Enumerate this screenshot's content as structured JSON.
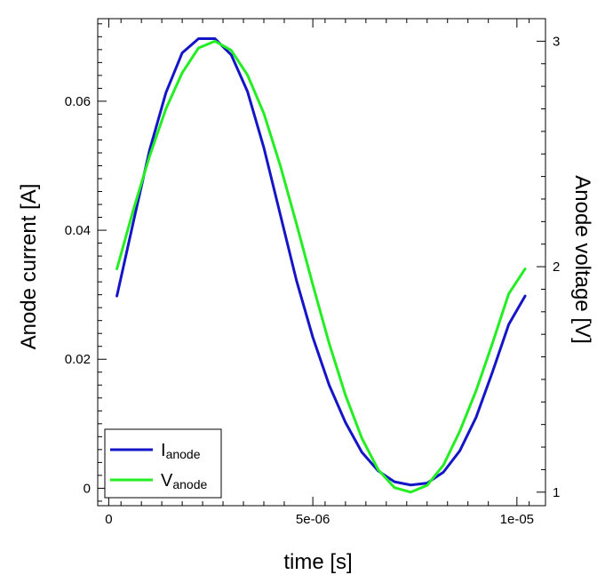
{
  "chart_data": {
    "type": "line",
    "xlabel": "time [s]",
    "ylabel_left": "Anode current [A]",
    "ylabel_right": "Anode voltage [V]",
    "xlim": [
      -2.7e-07,
      1.07e-05
    ],
    "ylim_left": [
      -0.0027,
      0.0728
    ],
    "ylim_right": [
      0.94,
      3.1
    ],
    "x_ticks": [
      {
        "value": 0,
        "label": "0"
      },
      {
        "value": 5e-06,
        "label": "5e-06"
      },
      {
        "value": 1e-05,
        "label": "1e-05"
      }
    ],
    "y_ticks_left": [
      {
        "value": 0,
        "label": "0"
      },
      {
        "value": 0.02,
        "label": "0.02"
      },
      {
        "value": 0.04,
        "label": "0.04"
      },
      {
        "value": 0.06,
        "label": "0.06"
      }
    ],
    "y_ticks_right": [
      {
        "value": 1,
        "label": "1"
      },
      {
        "value": 2,
        "label": "2"
      },
      {
        "value": 3,
        "label": "3"
      }
    ],
    "grid": false,
    "legend_position": "bottom-left",
    "series": [
      {
        "name": "I",
        "subscript": "anode",
        "axis": "left",
        "color": "#1515c8",
        "x": [
          2e-07,
          6e-07,
          1e-06,
          1.4e-06,
          1.8e-06,
          2.2e-06,
          2.6e-06,
          3e-06,
          3.4e-06,
          3.8e-06,
          4.2e-06,
          4.6e-06,
          5e-06,
          5.4e-06,
          5.8e-06,
          6.2e-06,
          6.6e-06,
          7e-06,
          7.4e-06,
          7.8e-06,
          8.2e-06,
          8.6e-06,
          9e-06,
          9.4e-06,
          9.8e-06,
          1.02e-05
        ],
        "y": [
          0.0298,
          0.0412,
          0.0524,
          0.0613,
          0.0675,
          0.0697,
          0.0697,
          0.0672,
          0.0615,
          0.0528,
          0.0425,
          0.0322,
          0.0234,
          0.016,
          0.0102,
          0.0056,
          0.0027,
          0.001,
          0.0005,
          0.0008,
          0.0025,
          0.0058,
          0.011,
          0.018,
          0.0254,
          0.0298
        ]
      },
      {
        "name": "V",
        "subscript": "anode",
        "axis": "right",
        "color": "#22ee22",
        "x": [
          2e-07,
          6e-07,
          1e-06,
          1.4e-06,
          1.8e-06,
          2.2e-06,
          2.6e-06,
          3e-06,
          3.4e-06,
          3.8e-06,
          4.2e-06,
          4.6e-06,
          5e-06,
          5.4e-06,
          5.8e-06,
          6.2e-06,
          6.6e-06,
          7e-06,
          7.4e-06,
          7.8e-06,
          8.2e-06,
          8.6e-06,
          9e-06,
          9.4e-06,
          9.8e-06,
          1.02e-05
        ],
        "y": [
          1.99,
          2.25,
          2.49,
          2.7,
          2.86,
          2.97,
          3.0,
          2.96,
          2.85,
          2.68,
          2.45,
          2.19,
          1.92,
          1.66,
          1.43,
          1.24,
          1.1,
          1.02,
          1.0,
          1.03,
          1.12,
          1.27,
          1.45,
          1.66,
          1.88,
          1.99
        ]
      }
    ]
  }
}
